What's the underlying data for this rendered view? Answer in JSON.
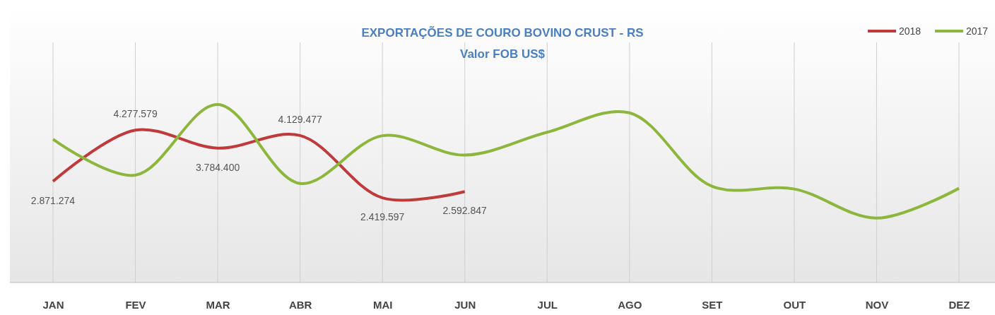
{
  "chart_data": {
    "type": "line",
    "title": "EXPORTAÇÕES DE COURO BOVINO CRUST - RS",
    "subtitle": "Valor FOB US$",
    "categories": [
      "JAN",
      "FEV",
      "MAR",
      "ABR",
      "MAI",
      "JUN",
      "JUL",
      "AGO",
      "SET",
      "OUT",
      "NOV",
      "DEZ"
    ],
    "series": [
      {
        "name": "2018",
        "color": "#c0393b",
        "values": [
          2871274,
          4277579,
          3784400,
          4129477,
          2419597,
          2592847,
          null,
          null,
          null,
          null,
          null,
          null
        ],
        "value_labels": [
          "2.871.274",
          "4.277.579",
          "3.784.400",
          "4.129.477",
          "2.419.597",
          "2.592.847",
          null,
          null,
          null,
          null,
          null,
          null
        ]
      },
      {
        "name": "2017",
        "color": "#8db63c",
        "values": [
          4030000,
          3043000,
          4981000,
          2815000,
          4126000,
          3594000,
          4220000,
          4753000,
          2739000,
          2663000,
          1865000,
          2682000
        ]
      }
    ],
    "grid": "x",
    "legend": "top right",
    "marker": "none",
    "line_style": "solid"
  }
}
